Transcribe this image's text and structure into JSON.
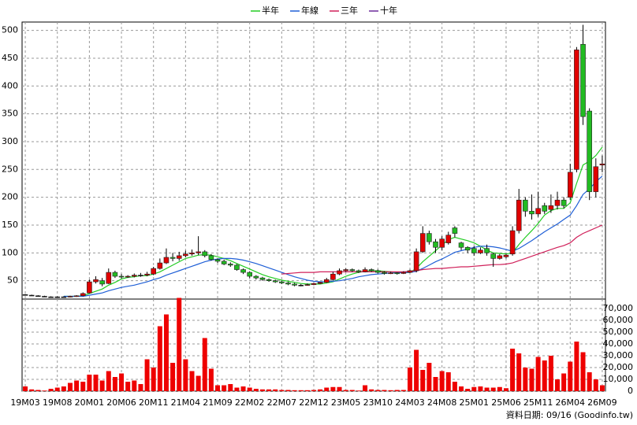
{
  "chart_data": {
    "type": "candlestick",
    "categories": [
      "19M03",
      null,
      null,
      null,
      null,
      "19M08",
      null,
      null,
      null,
      null,
      "20M01",
      null,
      null,
      null,
      null,
      "20M06",
      null,
      null,
      null,
      null,
      "20M11",
      null,
      null,
      null,
      null,
      "21M04",
      null,
      null,
      null,
      null,
      "21M09",
      null,
      null,
      null,
      null,
      "22M02",
      null,
      null,
      null,
      null,
      "22M07",
      null,
      null,
      null,
      null,
      "22M12",
      null,
      null,
      null,
      null,
      "23M05",
      null,
      null,
      null,
      null,
      "23M10",
      null,
      null,
      null,
      null,
      "24M03",
      null,
      null,
      null,
      null,
      "24M08",
      null,
      null,
      null,
      null,
      "25M01",
      null,
      null,
      null,
      null,
      "25M06",
      null,
      null,
      null,
      null,
      "25M11",
      null,
      null,
      null,
      null,
      "26M04",
      null,
      null,
      null,
      null,
      "26M09"
    ],
    "open": [
      25,
      24,
      23,
      22,
      21,
      21,
      21,
      21,
      22,
      23,
      28,
      48,
      50,
      45,
      65,
      58,
      57,
      58,
      60,
      60,
      62,
      72,
      82,
      92,
      90,
      95,
      98,
      100,
      102,
      95,
      88,
      85,
      80,
      78,
      70,
      65,
      58,
      55,
      52,
      50,
      48,
      46,
      44,
      42,
      42,
      43,
      45,
      47,
      52,
      62,
      68,
      70,
      68,
      66,
      70,
      68,
      65,
      63,
      64,
      63,
      65,
      68,
      102,
      135,
      120,
      110,
      118,
      145,
      118,
      110,
      108,
      100,
      108,
      98,
      90,
      93,
      98,
      140,
      195,
      175,
      170,
      185,
      178,
      185,
      195,
      200,
      250,
      475,
      355,
      210,
      258
    ],
    "high": [
      26,
      25,
      24,
      23,
      22,
      22,
      22,
      23,
      24,
      29,
      52,
      58,
      55,
      72,
      68,
      62,
      60,
      63,
      64,
      66,
      75,
      90,
      108,
      100,
      102,
      104,
      106,
      130,
      105,
      98,
      90,
      88,
      83,
      80,
      72,
      67,
      60,
      57,
      54,
      52,
      50,
      48,
      46,
      44,
      45,
      46,
      48,
      55,
      66,
      72,
      72,
      72,
      70,
      74,
      72,
      70,
      67,
      66,
      65,
      67,
      70,
      108,
      148,
      140,
      125,
      130,
      138,
      148,
      120,
      112,
      112,
      110,
      115,
      100,
      98,
      98,
      148,
      215,
      200,
      205,
      210,
      190,
      205,
      210,
      200,
      260,
      470,
      510,
      360,
      270,
      275
    ],
    "low": [
      24,
      23,
      22,
      21,
      20,
      20,
      20,
      20,
      21,
      22,
      27,
      45,
      40,
      44,
      55,
      54,
      55,
      56,
      57,
      58,
      60,
      70,
      80,
      85,
      86,
      92,
      95,
      96,
      92,
      86,
      82,
      78,
      75,
      68,
      62,
      55,
      52,
      50,
      48,
      46,
      44,
      42,
      40,
      40,
      41,
      42,
      44,
      46,
      50,
      60,
      66,
      66,
      64,
      65,
      66,
      63,
      61,
      62,
      61,
      62,
      64,
      65,
      100,
      115,
      100,
      105,
      115,
      128,
      105,
      100,
      95,
      98,
      95,
      75,
      88,
      90,
      95,
      135,
      165,
      160,
      165,
      170,
      172,
      178,
      180,
      195,
      245,
      330,
      195,
      200,
      245
    ],
    "close": [
      25,
      24,
      23,
      22,
      21,
      21,
      21,
      22,
      23,
      27,
      48,
      52,
      44,
      65,
      58,
      57,
      58,
      60,
      60,
      62,
      72,
      82,
      92,
      90,
      95,
      98,
      100,
      102,
      95,
      88,
      85,
      80,
      78,
      70,
      65,
      58,
      55,
      52,
      50,
      48,
      46,
      44,
      42,
      42,
      43,
      45,
      47,
      52,
      62,
      68,
      70,
      68,
      66,
      70,
      68,
      65,
      63,
      64,
      63,
      65,
      68,
      102,
      135,
      120,
      110,
      125,
      132,
      135,
      110,
      105,
      100,
      105,
      100,
      90,
      95,
      96,
      140,
      195,
      175,
      170,
      180,
      175,
      185,
      195,
      185,
      245,
      465,
      345,
      210,
      255,
      260
    ],
    "up_color": "#e00000",
    "down_color": "#22bb22",
    "flat_color": "#000000",
    "ylim": [
      17,
      515
    ],
    "yticks": [
      50,
      100,
      150,
      200,
      250,
      300,
      350,
      400,
      450,
      500
    ],
    "grid": true,
    "series": [
      {
        "name": "半年",
        "color": "#22cc22",
        "values": [
          null,
          null,
          null,
          null,
          null,
          null,
          22,
          22,
          22,
          23,
          27,
          31,
          35,
          42,
          47,
          53,
          56,
          57,
          59,
          59,
          62,
          66,
          72,
          78,
          84,
          90,
          93,
          96,
          97,
          96,
          93,
          90,
          86,
          81,
          76,
          71,
          66,
          61,
          57,
          54,
          51,
          49,
          47,
          45,
          44,
          44,
          44,
          46,
          48,
          53,
          58,
          62,
          65,
          67,
          68,
          68,
          67,
          66,
          65,
          65,
          65,
          72,
          84,
          94,
          104,
          114,
          124,
          128,
          125,
          122,
          118,
          112,
          105,
          100,
          99,
          98,
          100,
          115,
          128,
          140,
          153,
          168,
          176,
          180,
          180,
          190,
          225,
          258,
          265,
          275,
          290
        ]
      },
      {
        "name": "年線",
        "color": "#1f5fd6",
        "values": [
          null,
          null,
          null,
          null,
          null,
          null,
          22,
          22,
          22,
          22,
          24,
          26,
          28,
          32,
          35,
          38,
          40,
          42,
          45,
          48,
          52,
          55,
          60,
          64,
          68,
          72,
          76,
          80,
          84,
          87,
          89,
          90,
          90,
          89,
          87,
          84,
          81,
          77,
          73,
          69,
          65,
          61,
          57,
          54,
          51,
          49,
          48,
          48,
          49,
          50,
          52,
          54,
          57,
          59,
          61,
          62,
          63,
          64,
          64,
          65,
          65,
          67,
          72,
          78,
          84,
          89,
          95,
          101,
          104,
          107,
          110,
          112,
          112,
          111,
          109,
          106,
          103,
          108,
          115,
          122,
          130,
          138,
          145,
          152,
          160,
          168,
          185,
          205,
          215,
          228,
          238
        ]
      },
      {
        "name": "三年",
        "color": "#d0205a",
        "values": [
          null,
          null,
          null,
          null,
          null,
          null,
          null,
          null,
          null,
          null,
          null,
          null,
          null,
          null,
          null,
          null,
          null,
          null,
          null,
          null,
          null,
          null,
          null,
          null,
          null,
          null,
          null,
          null,
          null,
          null,
          null,
          null,
          null,
          null,
          null,
          null,
          null,
          null,
          null,
          null,
          62,
          63,
          64,
          65,
          65,
          65,
          66,
          66,
          66,
          66,
          66,
          66,
          66,
          66,
          66,
          66,
          66,
          66,
          66,
          66,
          67,
          68,
          70,
          71,
          72,
          72,
          73,
          74,
          75,
          75,
          76,
          77,
          78,
          79,
          79,
          80,
          82,
          86,
          90,
          94,
          98,
          102,
          106,
          110,
          113,
          118,
          128,
          135,
          140,
          145,
          150
        ]
      },
      {
        "name": "十年",
        "color": "#6a2a9a",
        "values": [
          null,
          null,
          null,
          null,
          null,
          null,
          null,
          null,
          null,
          null,
          null,
          null,
          null,
          null,
          null,
          null,
          null,
          null,
          null,
          null,
          null,
          null,
          null,
          null,
          null,
          null,
          null,
          null,
          null,
          null,
          null,
          null,
          null,
          null,
          null,
          null,
          null,
          null,
          null,
          null,
          null,
          null,
          null,
          null,
          null,
          null,
          null,
          null,
          null,
          null,
          null,
          null,
          null,
          null,
          null,
          null,
          null,
          null,
          null,
          null,
          null,
          null,
          null,
          null,
          null,
          null,
          null,
          null,
          null,
          null,
          null,
          null,
          null,
          null,
          null,
          null,
          null,
          null,
          null,
          null,
          null,
          null,
          null,
          null,
          null,
          null,
          null,
          null,
          null,
          null,
          null
        ]
      }
    ],
    "volume": {
      "color": "#ee0000",
      "ylim": [
        0,
        78000
      ],
      "yticks": [
        0,
        {
          "value": 10000,
          "label": "10,000"
        },
        {
          "value": 20000,
          "label": "20,000"
        },
        {
          "value": 30000,
          "label": "30,000"
        },
        {
          "value": 40000,
          "label": "40,000"
        },
        {
          "value": 50000,
          "label": "50,000"
        },
        {
          "value": 60000,
          "label": "60,000"
        },
        {
          "value": 70000,
          "label": "70,000"
        }
      ],
      "values": [
        4000,
        1500,
        1000,
        500,
        2000,
        3000,
        4000,
        7000,
        9000,
        8000,
        14000,
        14000,
        9000,
        17000,
        12000,
        15000,
        8000,
        9000,
        6000,
        27000,
        20000,
        55000,
        65000,
        24000,
        79000,
        27000,
        17000,
        13000,
        45000,
        19000,
        5000,
        5000,
        6000,
        3000,
        4000,
        3000,
        2000,
        1500,
        1500,
        1500,
        1000,
        1000,
        800,
        800,
        800,
        1000,
        1500,
        3000,
        3500,
        3500,
        1000,
        1000,
        500,
        5000,
        1500,
        1000,
        1000,
        800,
        1000,
        1000,
        20000,
        35000,
        18000,
        24000,
        12000,
        17000,
        16000,
        8000,
        4000,
        2000,
        3500,
        4000,
        3000,
        3000,
        3500,
        2500,
        36000,
        32000,
        20000,
        19000,
        29000,
        26000,
        30000,
        10000,
        15000,
        25000,
        42000,
        33000,
        16000,
        10000,
        5000
      ]
    },
    "source": "資料日期: 09/16 (Goodinfo.tw)"
  }
}
